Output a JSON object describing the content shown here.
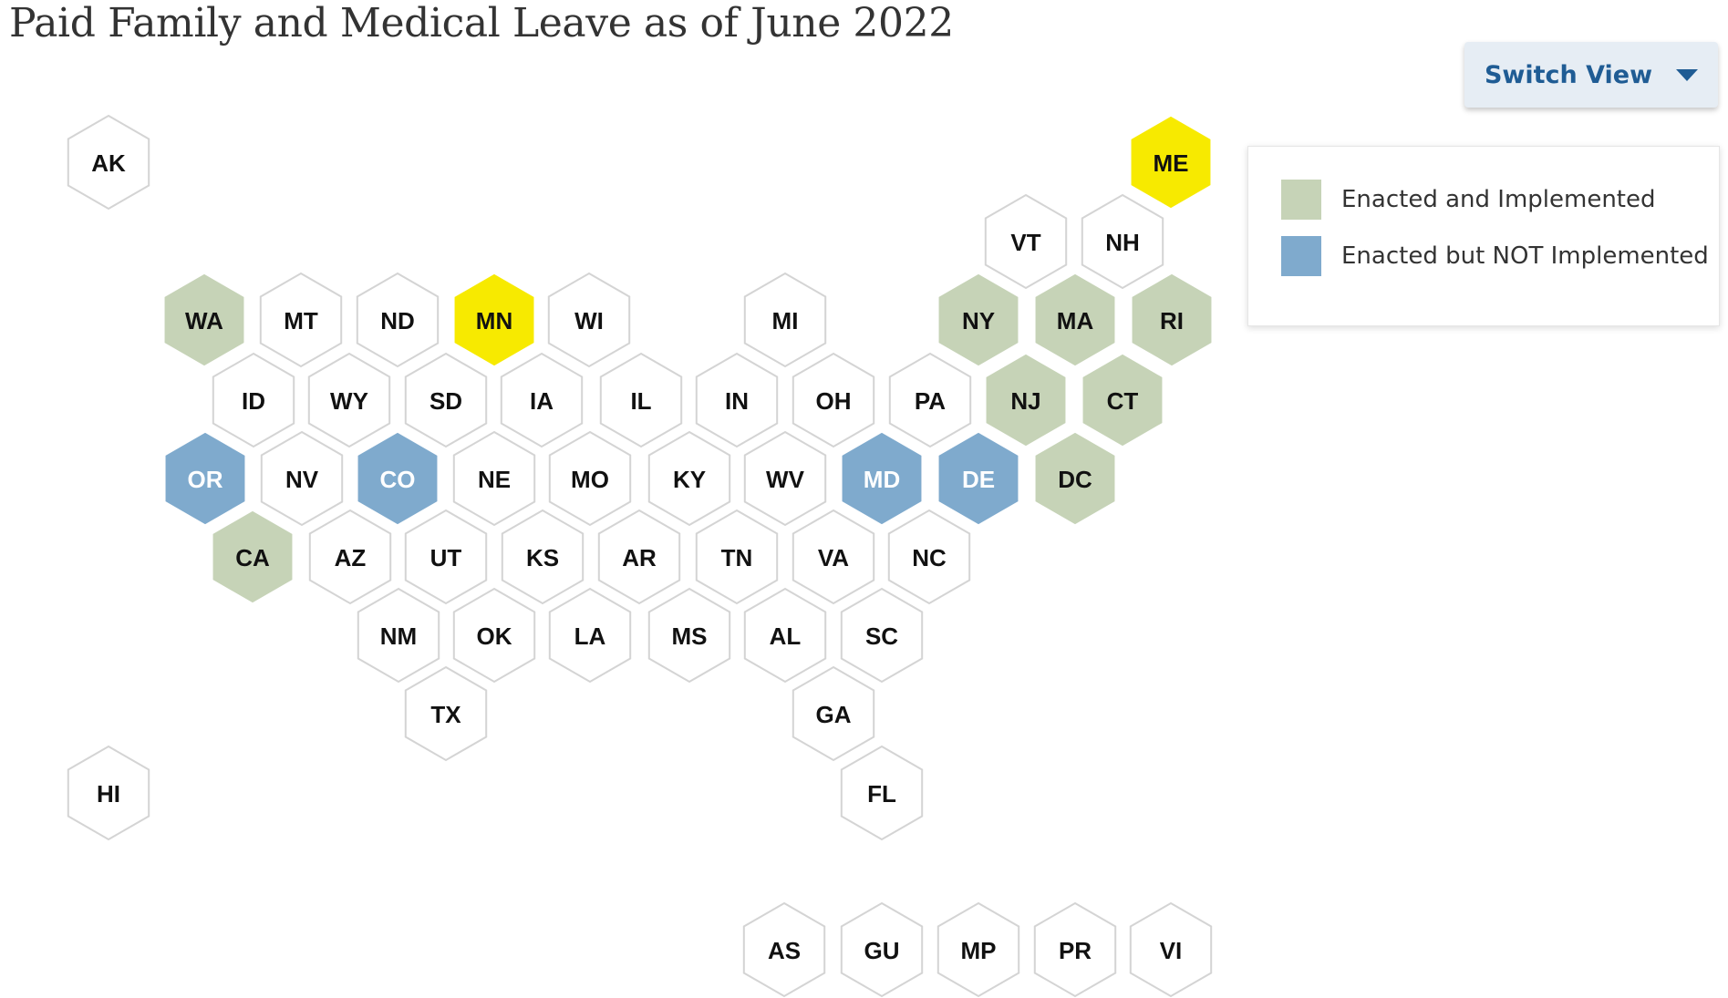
{
  "title": "Paid Family and Medical Leave as of June 2022",
  "switch_view": {
    "label": "Switch View"
  },
  "legend": {
    "items": [
      {
        "label": "Enacted and Implemented",
        "color": "#c6d3b7"
      },
      {
        "label": "Enacted but NOT Implemented",
        "color": "#7faacd"
      }
    ]
  },
  "colors": {
    "enacted_implemented": "#c6d3b7",
    "enacted_not_implemented": "#7faacd",
    "highlight": "#f7ea00",
    "none": "#ffffff",
    "hex_border": "#d4d4d4",
    "label_dark": "#111111",
    "label_light": "#ffffff"
  },
  "states": [
    {
      "abbr": "AK",
      "status": "none"
    },
    {
      "abbr": "ME",
      "status": "highlight"
    },
    {
      "abbr": "VT",
      "status": "none"
    },
    {
      "abbr": "NH",
      "status": "none"
    },
    {
      "abbr": "WA",
      "status": "enacted_implemented"
    },
    {
      "abbr": "MT",
      "status": "none"
    },
    {
      "abbr": "ND",
      "status": "none"
    },
    {
      "abbr": "MN",
      "status": "highlight"
    },
    {
      "abbr": "WI",
      "status": "none"
    },
    {
      "abbr": "MI",
      "status": "none"
    },
    {
      "abbr": "NY",
      "status": "enacted_implemented"
    },
    {
      "abbr": "MA",
      "status": "enacted_implemented"
    },
    {
      "abbr": "RI",
      "status": "enacted_implemented"
    },
    {
      "abbr": "ID",
      "status": "none"
    },
    {
      "abbr": "WY",
      "status": "none"
    },
    {
      "abbr": "SD",
      "status": "none"
    },
    {
      "abbr": "IA",
      "status": "none"
    },
    {
      "abbr": "IL",
      "status": "none"
    },
    {
      "abbr": "IN",
      "status": "none"
    },
    {
      "abbr": "OH",
      "status": "none"
    },
    {
      "abbr": "PA",
      "status": "none"
    },
    {
      "abbr": "NJ",
      "status": "enacted_implemented"
    },
    {
      "abbr": "CT",
      "status": "enacted_implemented"
    },
    {
      "abbr": "OR",
      "status": "enacted_not_implemented"
    },
    {
      "abbr": "NV",
      "status": "none"
    },
    {
      "abbr": "CO",
      "status": "enacted_not_implemented"
    },
    {
      "abbr": "NE",
      "status": "none"
    },
    {
      "abbr": "MO",
      "status": "none"
    },
    {
      "abbr": "KY",
      "status": "none"
    },
    {
      "abbr": "WV",
      "status": "none"
    },
    {
      "abbr": "MD",
      "status": "enacted_not_implemented"
    },
    {
      "abbr": "DE",
      "status": "enacted_not_implemented"
    },
    {
      "abbr": "DC",
      "status": "enacted_implemented"
    },
    {
      "abbr": "CA",
      "status": "enacted_implemented"
    },
    {
      "abbr": "AZ",
      "status": "none"
    },
    {
      "abbr": "UT",
      "status": "none"
    },
    {
      "abbr": "KS",
      "status": "none"
    },
    {
      "abbr": "AR",
      "status": "none"
    },
    {
      "abbr": "TN",
      "status": "none"
    },
    {
      "abbr": "VA",
      "status": "none"
    },
    {
      "abbr": "NC",
      "status": "none"
    },
    {
      "abbr": "NM",
      "status": "none"
    },
    {
      "abbr": "OK",
      "status": "none"
    },
    {
      "abbr": "LA",
      "status": "none"
    },
    {
      "abbr": "MS",
      "status": "none"
    },
    {
      "abbr": "AL",
      "status": "none"
    },
    {
      "abbr": "SC",
      "status": "none"
    },
    {
      "abbr": "TX",
      "status": "none"
    },
    {
      "abbr": "GA",
      "status": "none"
    },
    {
      "abbr": "HI",
      "status": "none"
    },
    {
      "abbr": "FL",
      "status": "none"
    },
    {
      "abbr": "AS",
      "status": "none"
    },
    {
      "abbr": "GU",
      "status": "none"
    },
    {
      "abbr": "MP",
      "status": "none"
    },
    {
      "abbr": "PR",
      "status": "none"
    },
    {
      "abbr": "VI",
      "status": "none"
    }
  ]
}
